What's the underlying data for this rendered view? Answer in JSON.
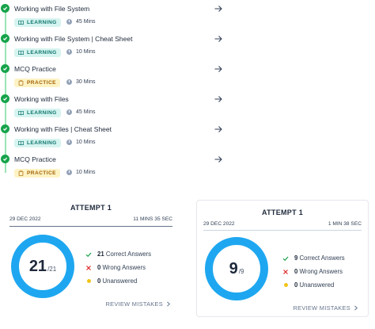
{
  "timeline": {
    "items": [
      {
        "title": "Working with File System",
        "badge": "LEARNING",
        "badge_type": "learning",
        "duration": "45 Mins"
      },
      {
        "title": "Working with File System | Cheat Sheet",
        "badge": "LEARNING",
        "badge_type": "learning",
        "duration": "10 Mins"
      },
      {
        "title": "MCQ Practice",
        "badge": "PRACTICE",
        "badge_type": "practice",
        "duration": "30 Mins"
      },
      {
        "title": "Working with Files",
        "badge": "LEARNING",
        "badge_type": "learning",
        "duration": "45 Mins"
      },
      {
        "title": "Working with Files | Cheat Sheet",
        "badge": "LEARNING",
        "badge_type": "learning",
        "duration": "10 Mins"
      },
      {
        "title": "MCQ Practice",
        "badge": "PRACTICE",
        "badge_type": "practice",
        "duration": "10 Mins"
      }
    ],
    "icons": {
      "status": "check-circle-icon",
      "nav": "arrow-right-icon",
      "learning": "book-icon",
      "practice": "clipboard-icon",
      "duration": "clock-icon"
    }
  },
  "attempts": [
    {
      "title": "ATTEMPT 1",
      "date": "29 DEC 2022",
      "time": "11 MINS 35 SEC",
      "score": "21",
      "total": "/21",
      "correct": "21",
      "correct_label": "Correct Answers",
      "wrong": "0",
      "wrong_label": "Wrong Answers",
      "unanswered": "0",
      "unanswered_label": "Unanswered",
      "review_label": "REVIEW MISTAKES"
    },
    {
      "title": "ATTEMPT 1",
      "date": "29 DEC 2022",
      "time": "1 MIN 38 SEC",
      "score": "9",
      "total": "/9",
      "correct": "9",
      "correct_label": "Correct Answers",
      "wrong": "0",
      "wrong_label": "Wrong Answers",
      "unanswered": "0",
      "unanswered_label": "Unanswered",
      "review_label": "REVIEW MISTAKES"
    }
  ],
  "colors": {
    "complete": "#16a34a",
    "ring": "#1ea7f0",
    "learning_bg": "#d6f4f0",
    "practice_bg": "#fdf3c4",
    "wrong": "#dc2626",
    "unanswered": "#f0c419",
    "correct": "#16a34a"
  }
}
